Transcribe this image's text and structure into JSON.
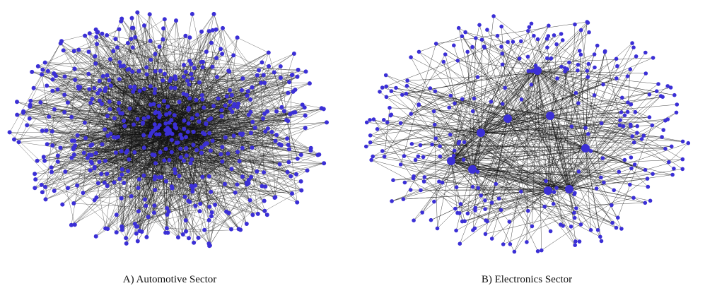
{
  "panels": [
    {
      "caption": "A) Automotive Sector"
    },
    {
      "caption": "B) Electronics Sector"
    }
  ]
}
